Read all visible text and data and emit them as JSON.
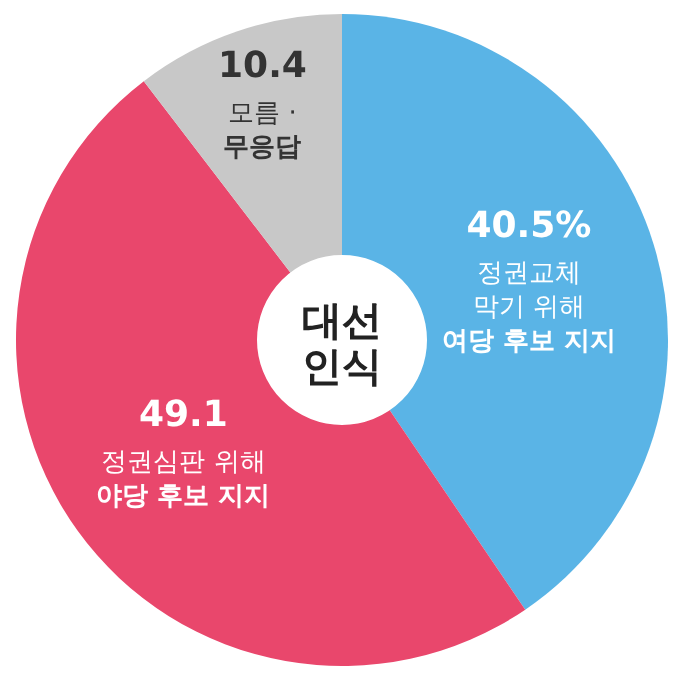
{
  "chart_data": {
    "type": "donut",
    "title": "대선\n인식",
    "categories": [
      "정권교체\n막기 위해\n여당 후보 지지",
      "정권심판 위해\n야당 후보 지지",
      "모름 ·\n무응답"
    ],
    "values": [
      40.5,
      49.1,
      10.4
    ],
    "colors": [
      "#5ab4e6",
      "#e9476c",
      "#c8c8c8"
    ],
    "value_labels": [
      "40.5%",
      "49.1",
      "10.4"
    ]
  }
}
